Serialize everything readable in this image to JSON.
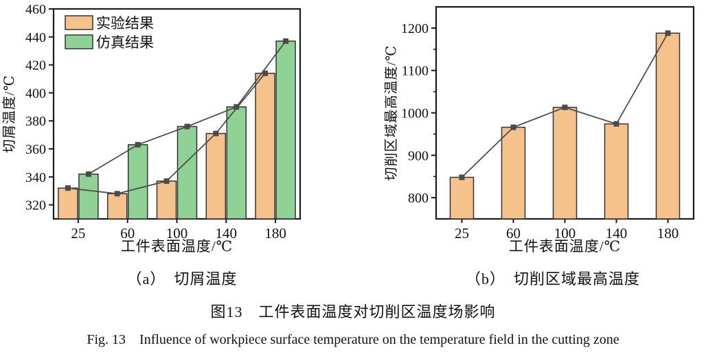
{
  "figure": {
    "caption_zh": "图13　工件表面温度对切削区温度场影响",
    "caption_en": "Fig. 13　Influence of workpiece surface temperature on the temperature field in the cutting zone"
  },
  "colors": {
    "experiment": "#F5C28C",
    "simulation": "#90D295",
    "bar_border": "#333333",
    "line": "#4D4D4D",
    "marker": "#4A4A4A",
    "axis": "#1A1A1A",
    "text": "#111111"
  },
  "chart_data": [
    {
      "id": "chip-temperature",
      "type": "bar",
      "subtitle": "（a）　切屑温度",
      "categories": [
        "25",
        "60",
        "100",
        "140",
        "180"
      ],
      "series": [
        {
          "name": "实验结果",
          "color_key": "experiment",
          "values": [
            332,
            328,
            337,
            371,
            414
          ]
        },
        {
          "name": "仿真结果",
          "color_key": "simulation",
          "values": [
            342,
            363,
            376,
            390,
            437
          ]
        }
      ],
      "xlabel": "工件表面温度/℃",
      "ylabel": "切屑温度/℃",
      "ylim": [
        310,
        460
      ],
      "yticks": [
        320,
        340,
        360,
        380,
        400,
        420,
        440,
        460
      ],
      "line_overlay": true,
      "legend_position": "top-left",
      "grid": false
    },
    {
      "id": "max-cutting-zone-temperature",
      "type": "bar",
      "subtitle": "（b）　切削区域最高温度",
      "categories": [
        "25",
        "60",
        "100",
        "140",
        "180"
      ],
      "series": [
        {
          "name": "实验结果",
          "color_key": "experiment",
          "values": [
            848,
            966,
            1013,
            974,
            1188
          ]
        }
      ],
      "xlabel": "工件表面温度/℃",
      "ylabel": "切削区域最高温度/℃",
      "ylim": [
        750,
        1250
      ],
      "yticks": [
        800,
        900,
        1000,
        1100,
        1200
      ],
      "yticks_minor_step": 50,
      "line_overlay": true,
      "grid": false
    }
  ]
}
